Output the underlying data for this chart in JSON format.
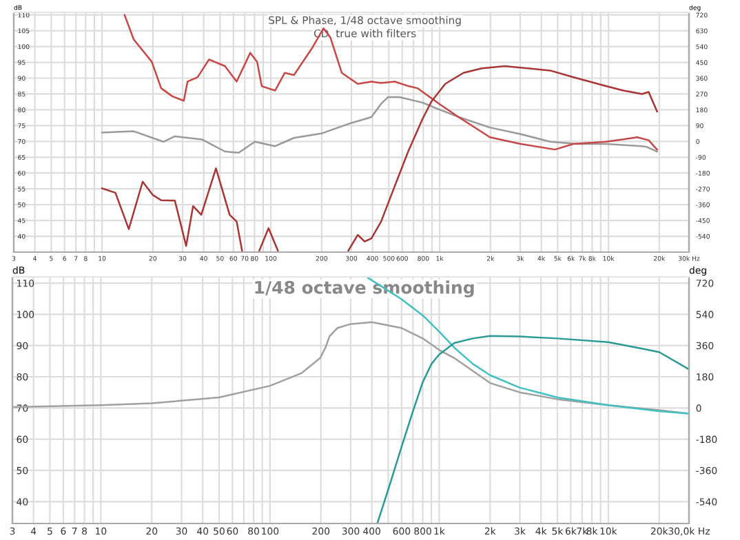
{
  "chart_data": [
    {
      "type": "line",
      "title": "SPL & Phase, 1/48 octave smoothing",
      "subtitle": "CD  true with filters",
      "ylabel": "dB",
      "y2label": "deg",
      "log": "x",
      "grid": true,
      "xlim": [
        3,
        30000
      ],
      "ylim": [
        35,
        110.8
      ],
      "y2lim": [
        -630,
        735
      ],
      "xticks": [
        3,
        4,
        5,
        6,
        7,
        8,
        {
          "value": 9,
          "label": null
        },
        10,
        20,
        30,
        40,
        50,
        60,
        70,
        80,
        {
          "value": 90,
          "label": null
        },
        100,
        200,
        300,
        400,
        500,
        600,
        {
          "value": 700,
          "label": null
        },
        800,
        {
          "value": 900,
          "label": null
        },
        {
          "value": 1000,
          "label": "1k"
        },
        {
          "value": 2000,
          "label": "2k"
        },
        {
          "value": 3000,
          "label": "3k"
        },
        {
          "value": 4000,
          "label": "4k"
        },
        {
          "value": 5000,
          "label": "5k"
        },
        {
          "value": 6000,
          "label": "6k"
        },
        {
          "value": 7000,
          "label": "7k"
        },
        {
          "value": 8000,
          "label": "8k"
        },
        {
          "value": 9000,
          "label": null
        },
        {
          "value": 10000,
          "label": "10k"
        },
        {
          "value": 20000,
          "label": "20k"
        },
        {
          "value": 30000,
          "label": "30k Hz"
        }
      ],
      "yticks": [
        110,
        105,
        100,
        95,
        90,
        85,
        80,
        75,
        70,
        65,
        60,
        55,
        50,
        45,
        40
      ],
      "y2ticks": [
        720,
        630,
        540,
        450,
        360,
        270,
        180,
        90,
        0,
        -90,
        -180,
        -270,
        -360,
        -450,
        -540
      ],
      "series": [
        {
          "color": "#999999",
          "x": [
            10,
            15.4,
            23.1,
            27,
            39.2,
            53.5,
            64.5,
            80.4,
            106,
            137,
            199,
            298,
            394,
            450,
            494,
            577,
            789,
            993,
            1300,
            1985,
            3020,
            4520,
            6570,
            9680,
            15800,
            16800,
            19400
          ],
          "values": [
            72.8,
            73.2,
            69.9,
            71.6,
            70.6,
            66.8,
            66.4,
            69.9,
            68.5,
            71.1,
            72.5,
            75.8,
            77.7,
            81.9,
            84.0,
            84.0,
            82.3,
            80.1,
            77.7,
            74.4,
            72.3,
            69.9,
            69.2,
            69.2,
            68.5,
            68.3,
            66.8
          ]
        },
        {
          "color": "#c84646",
          "axis": "y2",
          "x": [
            13.6,
            15.4,
            19.7,
            22.4,
            26.1,
            30.5,
            32.1,
            36.8,
            43,
            53.5,
            62.7,
            75.5,
            82.9,
            88.3,
            106,
            121,
            137,
            175,
            205,
            225,
            263,
            327,
            394,
            450,
            542,
            654,
            741,
            993,
            1300,
            1985,
            3020,
            4820,
            6180,
            9680,
            12280,
            14800,
            17300,
            19400
          ],
          "values": [
            720,
            581,
            454,
            303,
            257,
            232,
            341,
            366,
            467,
            429,
            341,
            505,
            454,
            315,
            290,
            391,
            378,
            530,
            644,
            593,
            391,
            328,
            341,
            333,
            341,
            315,
            303,
            214,
            138,
            24,
            -14,
            -46,
            -14,
            -1,
            12,
            24,
            7,
            -46
          ]
        },
        {
          "color": "#a83434",
          "axis": "y2",
          "x": [
            10,
            12,
            14.4,
            17.4,
            20,
            22.4,
            27,
            31.5,
            34.6,
            38.7,
            47.3,
            57,
            62.7,
            67.5,
            76,
            85.5,
            96.9,
            110,
            200,
            288,
            327,
            359,
            394,
            450,
            542,
            654,
            789,
            893,
            1079,
            1384,
            1775,
            2427,
            4520,
            6180,
            9680,
            12280,
            15800,
            17300,
            19400
          ],
          "values": [
            -267,
            -292,
            -499,
            -229,
            -305,
            -335,
            -337,
            -595,
            -368,
            -418,
            -153,
            -418,
            -456,
            -621,
            null,
            -621,
            -494,
            -621,
            null,
            -621,
            -532,
            -570,
            -552,
            -456,
            -254,
            -52,
            125,
            227,
            328,
            391,
            416,
            429,
            404,
            366,
            315,
            290,
            270,
            282,
            171
          ]
        }
      ]
    },
    {
      "type": "line",
      "title": "1/48 octave smoothing",
      "ylabel": "dB",
      "y2label": "deg",
      "log": "x",
      "grid": true,
      "xlim": [
        3,
        30000
      ],
      "ylim": [
        33,
        112
      ],
      "y2lim": [
        -666,
        756
      ],
      "xticks": [
        3,
        4,
        5,
        6,
        7,
        8,
        {
          "value": 9,
          "label": null
        },
        10,
        20,
        30,
        40,
        50,
        60,
        {
          "value": 70,
          "label": null
        },
        80,
        {
          "value": 90,
          "label": null
        },
        100,
        200,
        300,
        400,
        {
          "value": 500,
          "label": null
        },
        600,
        {
          "value": 700,
          "label": null
        },
        800,
        {
          "value": 900,
          "label": null
        },
        {
          "value": 1000,
          "label": "1k"
        },
        {
          "value": 2000,
          "label": "2k"
        },
        {
          "value": 3000,
          "label": "3k"
        },
        {
          "value": 4000,
          "label": "4k"
        },
        {
          "value": 5000,
          "label": "5k"
        },
        {
          "value": 6000,
          "label": "6k"
        },
        {
          "value": 7000,
          "label": "7k"
        },
        {
          "value": 8000,
          "label": "8k"
        },
        {
          "value": 9000,
          "label": null
        },
        {
          "value": 10000,
          "label": "10k"
        },
        {
          "value": 20000,
          "label": "20k"
        },
        {
          "value": 30000,
          "label": "30,0k Hz"
        }
      ],
      "yticks": [
        110,
        100,
        90,
        80,
        70,
        60,
        50,
        40
      ],
      "y2ticks": [
        720,
        540,
        360,
        180,
        0,
        -180,
        -360,
        -540
      ],
      "series": [
        {
          "color": "#a0a0a0",
          "x": [
            3,
            10,
            20,
            50,
            100,
            154,
            198,
            213,
            225,
            250,
            300,
            400,
            600,
            800,
            1000,
            1229,
            2000,
            3000,
            5000,
            10000,
            20000,
            30000
          ],
          "values": [
            70.3,
            70.9,
            71.5,
            73.4,
            77.1,
            81.2,
            86.0,
            89.4,
            93.0,
            95.6,
            96.9,
            97.5,
            95.6,
            92.3,
            88.6,
            86.0,
            78.0,
            75.0,
            72.8,
            70.9,
            69.3,
            68.2
          ]
        },
        {
          "color": "#40c0c0",
          "axis": "y2",
          "x": [
            380,
            450,
            600,
            800,
            1000,
            1229,
            1578,
            2000,
            3000,
            5000,
            10000,
            20000,
            30000
          ],
          "values": [
            750,
            705,
            627,
            534,
            441,
            348,
            255,
            189,
            117,
            61,
            16,
            -19,
            -32
          ]
        },
        {
          "color": "#2a9a95",
          "axis": "y2",
          "x": [
            433,
            513,
            600,
            704,
            800,
            902,
            1000,
            1229,
            1578,
            2000,
            3000,
            5000,
            10000,
            16270,
            20000,
            30000
          ],
          "values": [
            -660,
            -436,
            -223,
            -11,
            149,
            255,
            308,
            375,
            401,
            415,
            412,
            401,
            380,
            340,
            322,
            223
          ]
        }
      ]
    }
  ]
}
